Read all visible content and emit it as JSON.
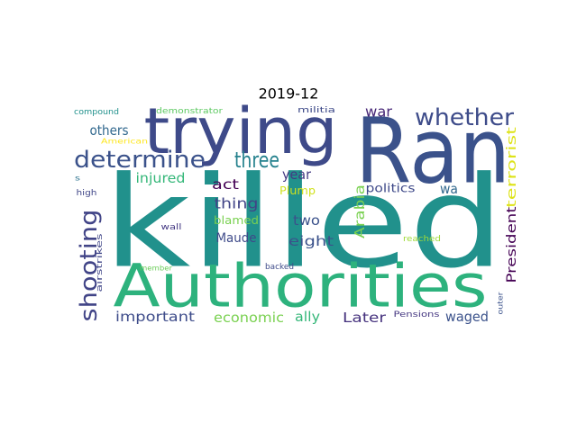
{
  "chart_data": {
    "type": "wordcloud",
    "title": "2019-12",
    "words": [
      "killed",
      "Ran",
      "trying",
      "Authorities",
      "whether",
      "determine",
      "three",
      "war",
      "others",
      "injured",
      "year",
      "thing",
      "act",
      "Plump",
      "politics",
      "wa",
      "blamed",
      "two",
      "Maude",
      "eight",
      "shooting",
      "Arabia",
      "President",
      "terrorist",
      "wall",
      "reached",
      "airstrikes",
      "member",
      "backed",
      "important",
      "economic",
      "ally",
      "Later",
      "Pensions",
      "waged",
      "outer",
      "compound",
      "demonstrator",
      "militia",
      "American",
      "s",
      "high"
    ]
  }
}
